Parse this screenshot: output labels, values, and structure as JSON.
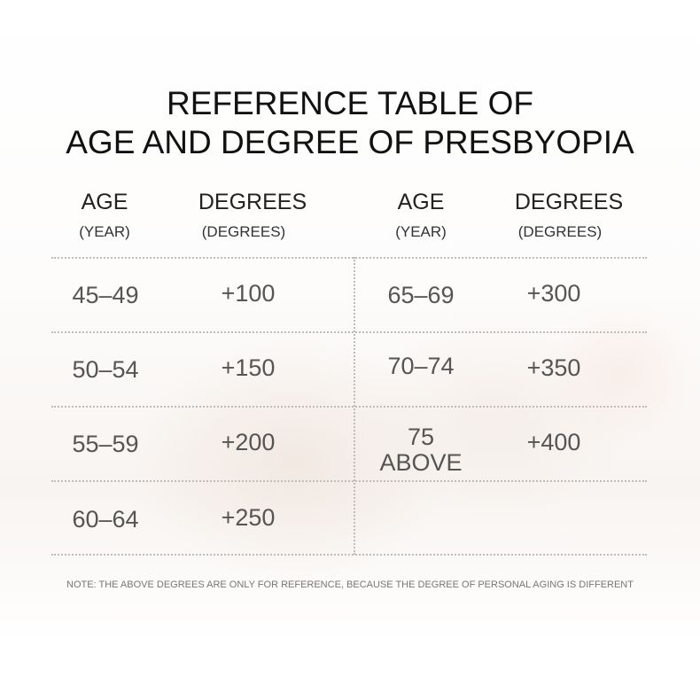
{
  "title": {
    "line1": "REFERENCE TABLE OF",
    "line2": "AGE AND DEGREE OF PRESBYOPIA"
  },
  "headers": {
    "age": "AGE",
    "age_unit": "(YEAR)",
    "degrees": "DEGREES",
    "degrees_unit": "(DEGREES)"
  },
  "left_rows": [
    {
      "age": "45–49",
      "degree": "+100"
    },
    {
      "age": "50–54",
      "degree": "+150"
    },
    {
      "age": "55–59",
      "degree": "+200"
    },
    {
      "age": "60–64",
      "degree": "+250"
    }
  ],
  "right_rows": [
    {
      "age": "65–69",
      "degree": "+300"
    },
    {
      "age": "70–74",
      "degree": "+350"
    },
    {
      "age_line1": "75",
      "age_line2": "ABOVE",
      "degree": "+400"
    }
  ],
  "note": "NOTE: THE ABOVE DEGREES ARE ONLY FOR REFERENCE, BECAUSE THE DEGREE OF PERSONAL AGING IS DIFFERENT"
}
